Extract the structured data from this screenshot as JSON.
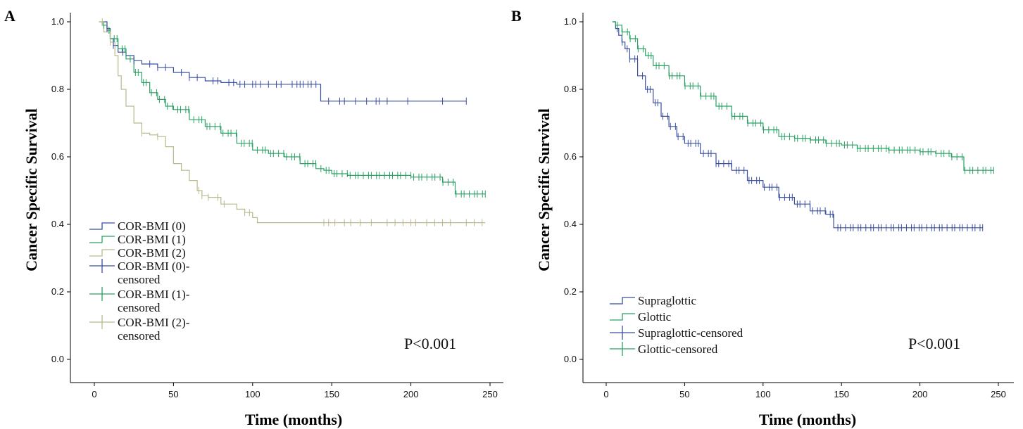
{
  "chart_data": [
    {
      "type": "line",
      "panel": "A",
      "xlabel": "Time (months)",
      "ylabel": "Cancer Specific Survival",
      "xlim": [
        0,
        250
      ],
      "ylim": [
        0.0,
        1.0
      ],
      "xticks": [
        0,
        50,
        100,
        150,
        200,
        250
      ],
      "yticks": [
        "0.0",
        "0.2",
        "0.4",
        "0.6",
        "0.8",
        "1.0"
      ],
      "grid": false,
      "legend_position": "bottom-left",
      "legend": [
        "COR-BMI (0)",
        "COR-BMI (1)",
        "COR-BMI (2)",
        "COR-BMI (0)-\ncensored",
        "COR-BMI (1)-\ncensored",
        "COR-BMI (2)-\ncensored"
      ],
      "annotation": "P<0.001",
      "series": [
        {
          "name": "COR-BMI (0)",
          "color": "#3a4fa0",
          "x": [
            5,
            8,
            10,
            12,
            15,
            20,
            25,
            30,
            40,
            50,
            60,
            70,
            80,
            90,
            143,
            235
          ],
          "y": [
            1.0,
            0.98,
            0.95,
            0.93,
            0.91,
            0.9,
            0.885,
            0.875,
            0.865,
            0.85,
            0.835,
            0.825,
            0.82,
            0.815,
            0.765,
            0.765
          ],
          "censored": [
            8,
            12,
            18,
            25,
            35,
            40,
            45,
            55,
            60,
            65,
            75,
            78,
            85,
            88,
            92,
            95,
            100,
            102,
            105,
            110,
            115,
            118,
            125,
            128,
            130,
            132,
            135,
            137,
            140,
            148,
            155,
            158,
            165,
            172,
            178,
            180,
            185,
            198,
            220,
            235
          ]
        },
        {
          "name": "COR-BMI (1)",
          "color": "#2aa064",
          "x": [
            3,
            5,
            8,
            10,
            15,
            20,
            25,
            30,
            35,
            40,
            45,
            50,
            60,
            70,
            80,
            90,
            100,
            110,
            120,
            130,
            140,
            145,
            150,
            160,
            180,
            200,
            220,
            228,
            247
          ],
          "y": [
            1.0,
            0.99,
            0.975,
            0.95,
            0.92,
            0.89,
            0.85,
            0.82,
            0.79,
            0.77,
            0.75,
            0.74,
            0.71,
            0.69,
            0.67,
            0.64,
            0.62,
            0.61,
            0.6,
            0.58,
            0.565,
            0.56,
            0.55,
            0.545,
            0.545,
            0.54,
            0.525,
            0.49,
            0.49
          ]
        },
        {
          "name": "COR-BMI (2)",
          "color": "#b9b98d",
          "x": [
            3,
            6,
            10,
            13,
            15,
            17,
            20,
            25,
            30,
            35,
            40,
            45,
            50,
            55,
            60,
            65,
            68,
            72,
            80,
            90,
            95,
            100,
            103,
            150,
            247
          ],
          "y": [
            1.0,
            0.97,
            0.94,
            0.9,
            0.84,
            0.8,
            0.75,
            0.7,
            0.67,
            0.665,
            0.66,
            0.63,
            0.58,
            0.56,
            0.53,
            0.5,
            0.485,
            0.48,
            0.46,
            0.445,
            0.435,
            0.42,
            0.405,
            0.405,
            0.405
          ],
          "censored": [
            5,
            10,
            30,
            40,
            66,
            68,
            72,
            78,
            82,
            95,
            98,
            145,
            148,
            152,
            158,
            162,
            168,
            175,
            185,
            190,
            195,
            200,
            203,
            210,
            215,
            220,
            225,
            235,
            240,
            245
          ]
        }
      ]
    },
    {
      "type": "line",
      "panel": "B",
      "xlabel": "Time (months)",
      "ylabel": "Cancer Specific Survival",
      "xlim": [
        0,
        250
      ],
      "ylim": [
        0.0,
        1.0
      ],
      "xticks": [
        0,
        50,
        100,
        150,
        200,
        250
      ],
      "yticks": [
        "0.0",
        "0.2",
        "0.4",
        "0.6",
        "0.8",
        "1.0"
      ],
      "grid": false,
      "legend_position": "bottom-left",
      "legend": [
        "Supraglottic",
        "Glottic",
        "Supraglottic-censored",
        "Glottic-censored"
      ],
      "annotation": "P<0.001",
      "series": [
        {
          "name": "Supraglottic",
          "color": "#3a4fa0",
          "x": [
            4,
            6,
            8,
            10,
            12,
            15,
            20,
            25,
            30,
            35,
            40,
            45,
            50,
            60,
            70,
            80,
            90,
            100,
            110,
            120,
            130,
            140,
            145,
            240
          ],
          "y": [
            1.0,
            0.98,
            0.96,
            0.94,
            0.92,
            0.89,
            0.84,
            0.8,
            0.76,
            0.72,
            0.69,
            0.66,
            0.64,
            0.61,
            0.58,
            0.56,
            0.53,
            0.51,
            0.48,
            0.46,
            0.44,
            0.43,
            0.39,
            0.39
          ]
        },
        {
          "name": "Glottic",
          "color": "#2aa064",
          "x": [
            4,
            6,
            10,
            15,
            20,
            25,
            30,
            40,
            50,
            60,
            70,
            80,
            90,
            100,
            110,
            120,
            130,
            140,
            150,
            160,
            180,
            200,
            210,
            220,
            228,
            247
          ],
          "y": [
            1.0,
            0.99,
            0.97,
            0.95,
            0.92,
            0.9,
            0.87,
            0.84,
            0.81,
            0.78,
            0.75,
            0.72,
            0.7,
            0.68,
            0.66,
            0.655,
            0.65,
            0.64,
            0.635,
            0.625,
            0.62,
            0.615,
            0.61,
            0.6,
            0.56,
            0.56
          ]
        }
      ]
    }
  ]
}
